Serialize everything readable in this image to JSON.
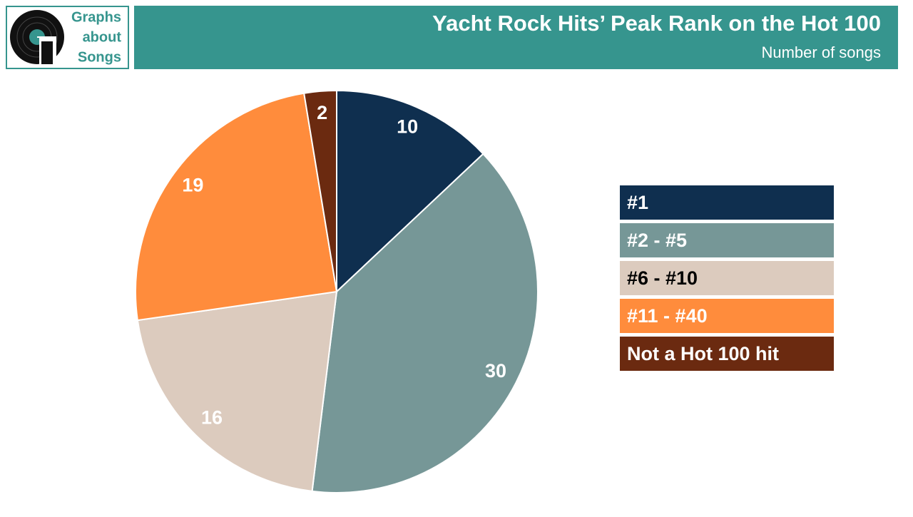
{
  "logo": [
    "Graphs",
    "about",
    "Songs"
  ],
  "chart_data": {
    "type": "pie",
    "title": "Yacht Rock Hits’ Peak Rank on the Hot 100",
    "subtitle": "Number of songs",
    "categories": [
      "#1",
      "#2 - #5",
      "#6 - #10",
      "#11 - #40",
      "Not a Hot 100 hit"
    ],
    "values": [
      10,
      30,
      16,
      19,
      2
    ],
    "colors": [
      "#0f2f4f",
      "#769797",
      "#dccbbe",
      "#ff8c3c",
      "#6b2a10"
    ],
    "legend": "right"
  }
}
